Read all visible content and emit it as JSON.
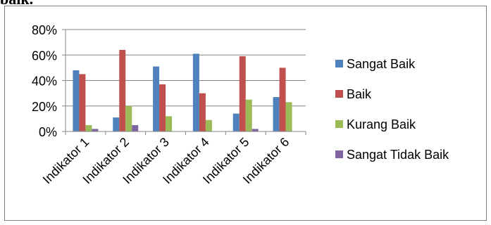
{
  "header": {
    "fragment": "baik."
  },
  "chart_data": {
    "type": "bar",
    "categories": [
      "Indikator 1",
      "Indikator 2",
      "Indikator 3",
      "Indikator 4",
      "Indikator 5",
      "Indikator 6"
    ],
    "series": [
      {
        "name": "Sangat Baik",
        "color": "#4F81BD",
        "values": [
          48,
          11,
          51,
          61,
          14,
          27
        ]
      },
      {
        "name": "Baik",
        "color": "#C0504D",
        "values": [
          45,
          64,
          37,
          30,
          59,
          50
        ]
      },
      {
        "name": "Kurang Baik",
        "color": "#9BBB59",
        "values": [
          5,
          20,
          12,
          9,
          25,
          23
        ]
      },
      {
        "name": "Sangat Tidak Baik",
        "color": "#8064A2",
        "values": [
          2,
          5,
          0,
          0,
          2,
          0
        ]
      }
    ],
    "ylim": [
      0,
      80
    ],
    "yticks": [
      "0%",
      "20%",
      "40%",
      "60%",
      "80%"
    ],
    "grid": true,
    "legend": "right"
  }
}
